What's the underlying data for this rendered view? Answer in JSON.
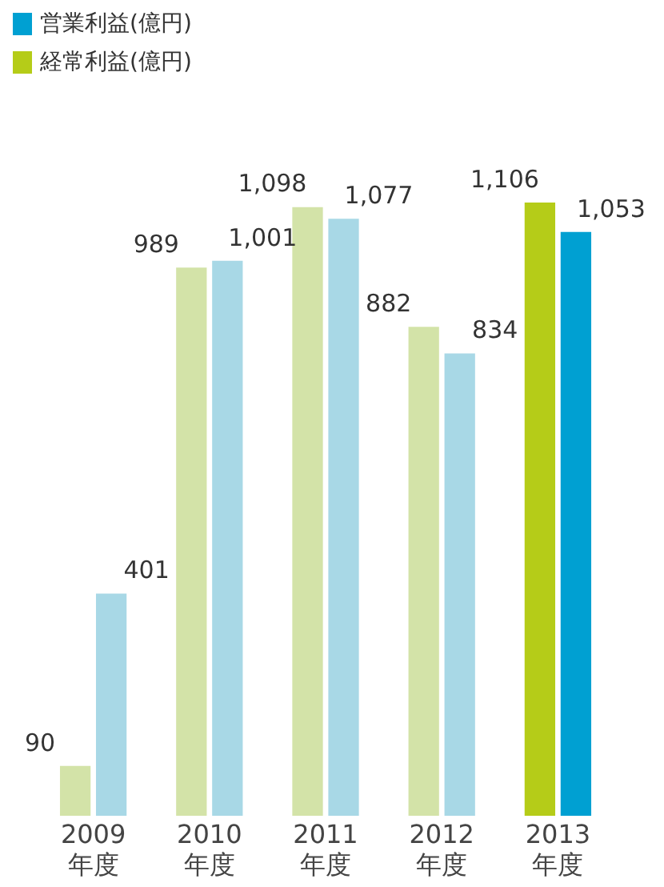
{
  "chart_data": {
    "type": "bar",
    "categories": [
      "2009\n年度",
      "2010\n年度",
      "2011\n年度",
      "2012\n年度",
      "2013\n年度"
    ],
    "series": [
      {
        "name": "経常利益(億円)",
        "color": "#b5cc18",
        "colors": [
          "#d3e3a8",
          "#d3e3a8",
          "#d3e3a8",
          "#d3e3a8",
          "#b5cc18"
        ],
        "values": [
          90,
          989,
          1098,
          882,
          1106
        ],
        "value_labels": [
          "90",
          "989",
          "1,098",
          "882",
          "1,106"
        ]
      },
      {
        "name": "営業利益(億円)",
        "color": "#00a0d2",
        "colors": [
          "#a8d8e6",
          "#a8d8e6",
          "#a8d8e6",
          "#a8d8e6",
          "#00a0d2"
        ],
        "values": [
          401,
          1001,
          1077,
          834,
          1053
        ],
        "value_labels": [
          "401",
          "1,001",
          "1,077",
          "834",
          "1,053"
        ]
      }
    ],
    "legend": "top left",
    "grid": false,
    "tick_labels": "x"
  }
}
